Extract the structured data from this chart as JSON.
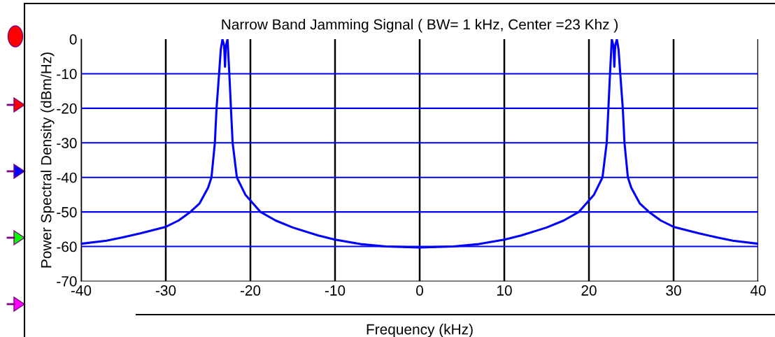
{
  "chart_data": {
    "type": "line",
    "title": "Narrow Band Jamming Signal ( BW= 1 kHz, Center =23 Khz )",
    "xlabel": "Frequency (kHz)",
    "ylabel": "Power Spectral Density (dBm/Hz)",
    "xlim": [
      -40,
      40
    ],
    "xticks": [
      -40,
      -30,
      -20,
      -10,
      0,
      10,
      20,
      30,
      40
    ],
    "ylim": [
      -70,
      0
    ],
    "yticks": [
      -70,
      -60,
      -50,
      -40,
      -30,
      -20,
      -10,
      0
    ],
    "grid": true,
    "marker": "none",
    "line_style": "solid",
    "x": [
      -40,
      -37,
      -35,
      -33,
      -30,
      -28.5,
      -27.1,
      -26,
      -25,
      -24.6,
      -24.2,
      -24.0,
      -23.7,
      -23.5,
      -23.3,
      -23.1,
      -23.0,
      -22.9,
      -22.7,
      -22.45,
      -22.3,
      -22.1,
      -21.6,
      -20.6,
      -18.8,
      -17,
      -15,
      -12,
      -10,
      -7,
      -4,
      0,
      4,
      7,
      10,
      12,
      15,
      17,
      18.8,
      20.6,
      21.6,
      22.1,
      22.3,
      22.45,
      22.7,
      22.9,
      23.0,
      23.1,
      23.3,
      23.5,
      23.7,
      24.0,
      24.2,
      24.6,
      25,
      26,
      27.1,
      28.5,
      30,
      33,
      35,
      37,
      40
    ],
    "series": [
      {
        "color": "#0000ff",
        "values": [
          -59.2,
          -58.3,
          -57.3,
          -56.2,
          -54.3,
          -52.5,
          -50,
          -47.5,
          -43,
          -40,
          -30,
          -20,
          -10,
          -3,
          0,
          -2,
          -8,
          -2,
          0,
          -12,
          -20,
          -30,
          -40,
          -45,
          -50,
          -52.5,
          -54.5,
          -56.8,
          -58,
          -59.3,
          -60,
          -60.3,
          -60,
          -59.3,
          -58,
          -56.8,
          -54.5,
          -52.5,
          -50,
          -45,
          -40,
          -30,
          -20,
          -12,
          0,
          -2,
          -8,
          -2,
          0,
          -3,
          -10,
          -20,
          -30,
          -40,
          -43,
          -47.5,
          -50,
          -52.5,
          -54.3,
          -56.2,
          -57.3,
          -58.3,
          -59.2
        ]
      }
    ]
  }
}
